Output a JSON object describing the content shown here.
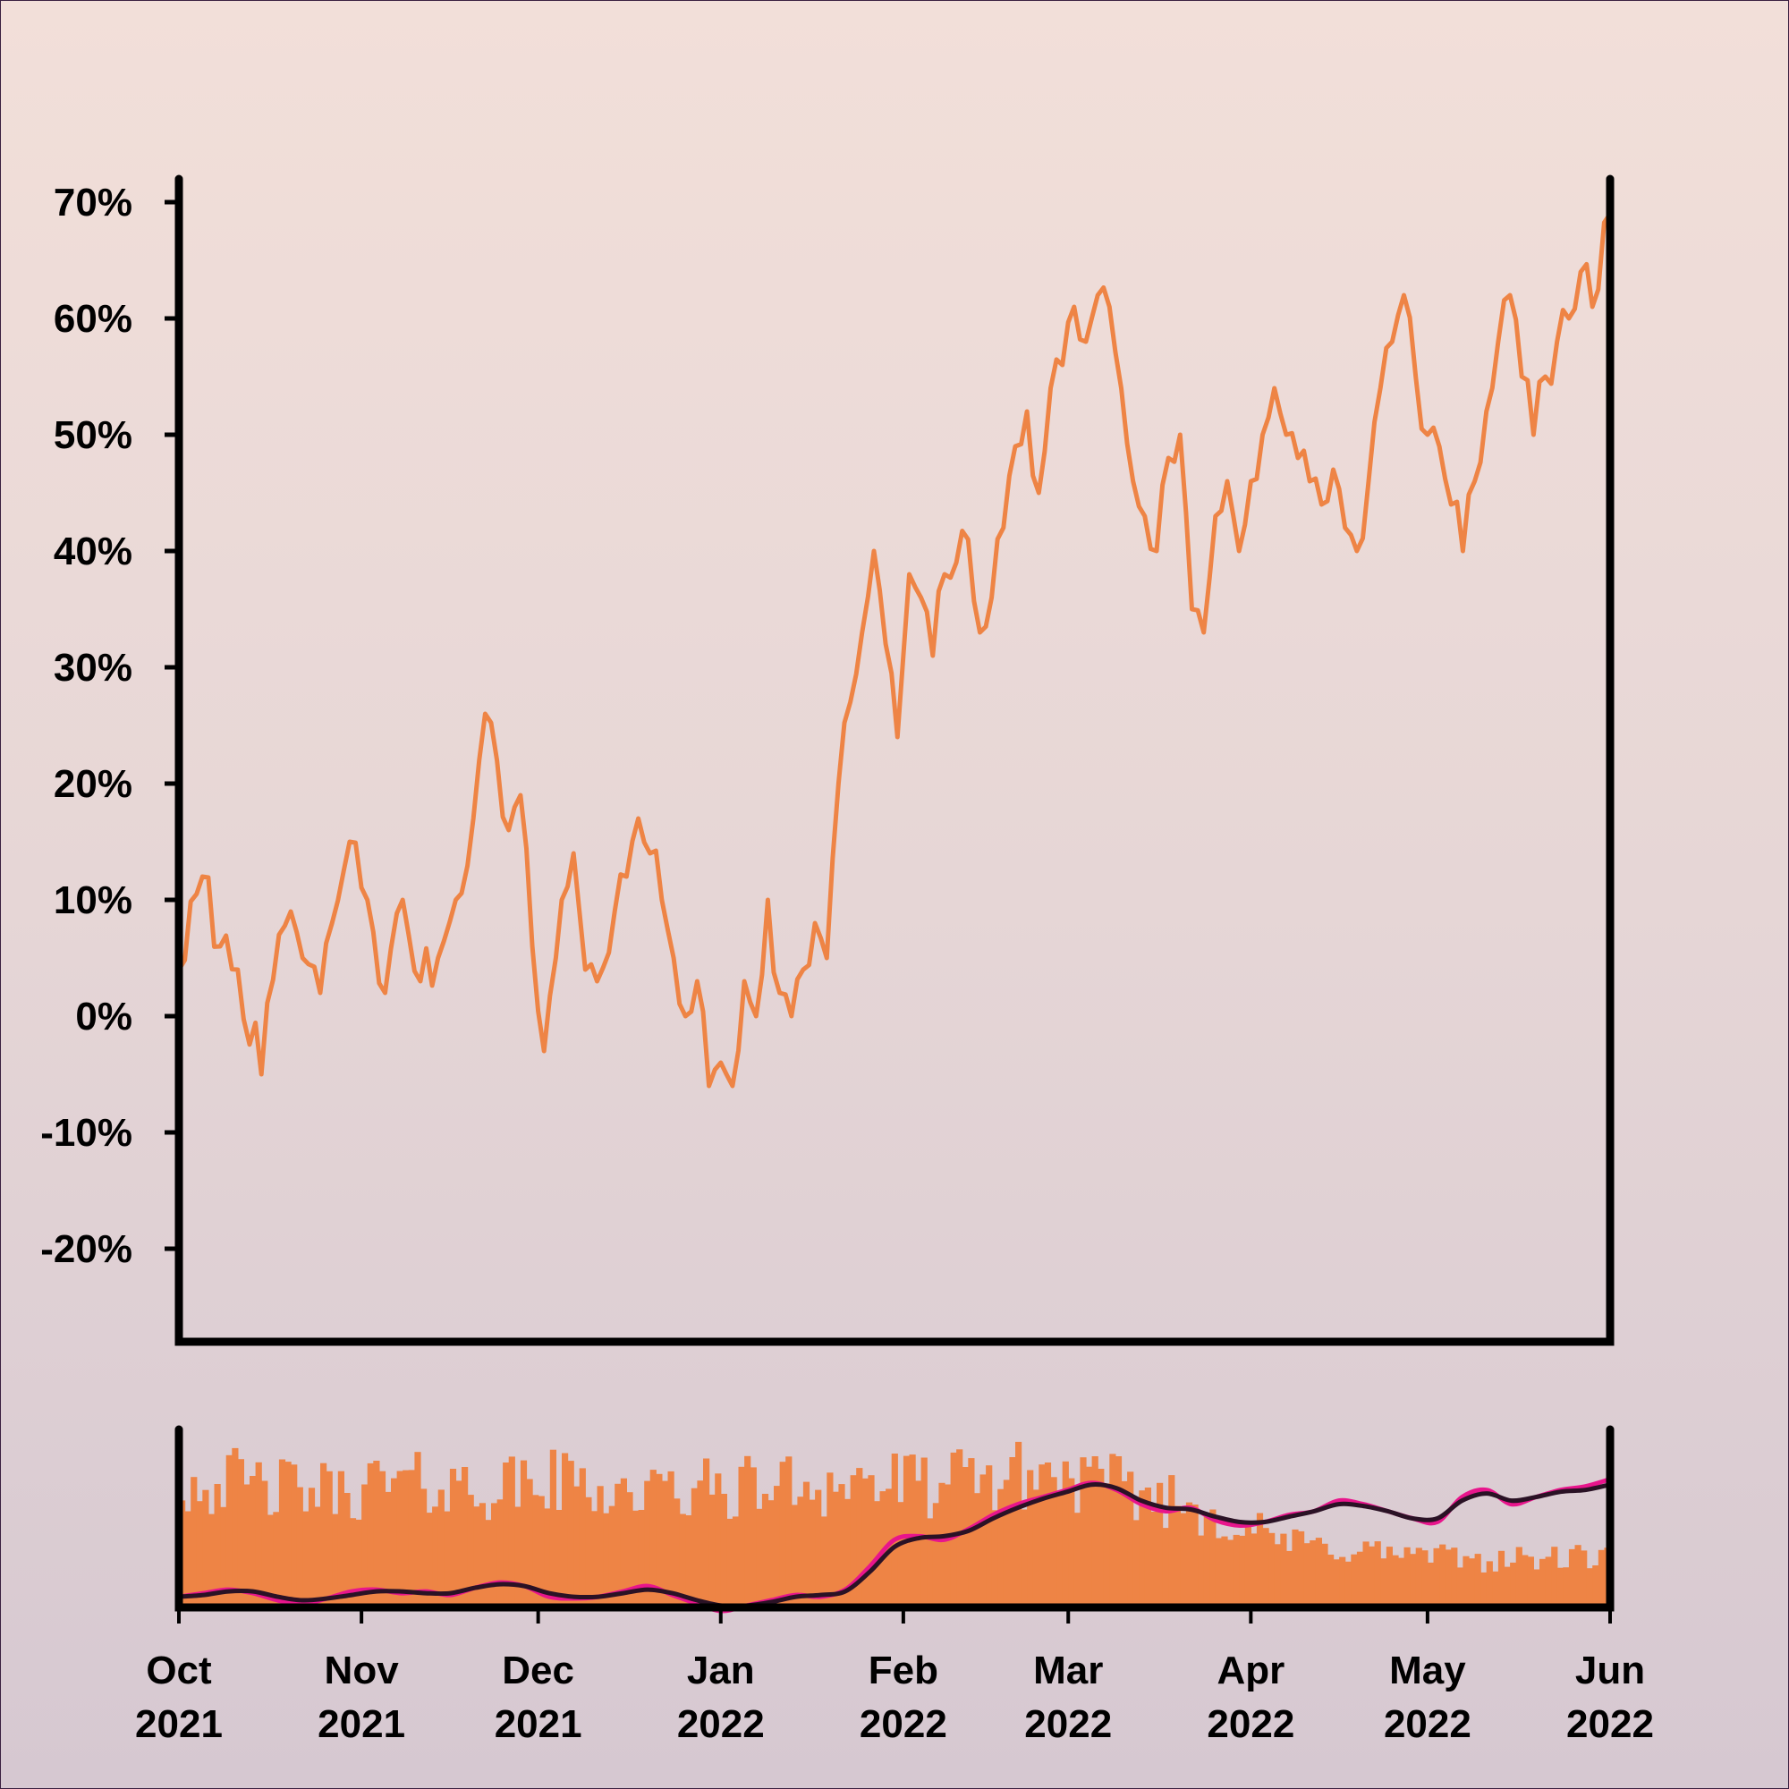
{
  "chart_data": [
    {
      "type": "line",
      "panel": "main",
      "ylim": [
        -0.28,
        0.72
      ],
      "xlim": [
        "2021-10-01",
        "2022-06-01"
      ],
      "yticks": [
        -0.2,
        -0.1,
        0.0,
        0.1,
        0.2,
        0.3,
        0.4,
        0.5,
        0.6,
        0.7
      ],
      "ytick_labels": [
        "-20%",
        "-10%",
        "0%",
        "10%",
        "20%",
        "30%",
        "40%",
        "50%",
        "60%",
        "70%"
      ],
      "grid": false,
      "color": "#ee8445",
      "series": [
        {
          "x": [
            "2021-10-01",
            "2021-10-05",
            "2021-10-08",
            "2021-10-11",
            "2021-10-15",
            "2021-10-18",
            "2021-10-20",
            "2021-10-22",
            "2021-10-25",
            "2021-10-27",
            "2021-10-30",
            "2021-11-02",
            "2021-11-05",
            "2021-11-08",
            "2021-11-11",
            "2021-11-14",
            "2021-11-17",
            "2021-11-20",
            "2021-11-22",
            "2021-11-24",
            "2021-11-26",
            "2021-11-28",
            "2021-11-30",
            "2021-12-02",
            "2021-12-05",
            "2021-12-07",
            "2021-12-09",
            "2021-12-11",
            "2021-12-14",
            "2021-12-16",
            "2021-12-18",
            "2021-12-20",
            "2021-12-22",
            "2021-12-24",
            "2021-12-26",
            "2021-12-28",
            "2021-12-30",
            "2022-01-01",
            "2022-01-03",
            "2022-01-05",
            "2022-01-07",
            "2022-01-09",
            "2022-01-11",
            "2022-01-13",
            "2022-01-15",
            "2022-01-17",
            "2022-01-19",
            "2022-01-21",
            "2022-01-23",
            "2022-01-25",
            "2022-01-27",
            "2022-01-29",
            "2022-01-31",
            "2022-02-02",
            "2022-02-04",
            "2022-02-06",
            "2022-02-08",
            "2022-02-10",
            "2022-02-12",
            "2022-02-14",
            "2022-02-16",
            "2022-02-18",
            "2022-02-20",
            "2022-02-22",
            "2022-02-24",
            "2022-02-26",
            "2022-02-28",
            "2022-03-02",
            "2022-03-04",
            "2022-03-06",
            "2022-03-08",
            "2022-03-10",
            "2022-03-12",
            "2022-03-14",
            "2022-03-16",
            "2022-03-18",
            "2022-03-20",
            "2022-03-22",
            "2022-03-24",
            "2022-03-26",
            "2022-03-28",
            "2022-03-30",
            "2022-04-01",
            "2022-04-03",
            "2022-04-05",
            "2022-04-07",
            "2022-04-09",
            "2022-04-11",
            "2022-04-13",
            "2022-04-15",
            "2022-04-17",
            "2022-04-19",
            "2022-04-21",
            "2022-04-23",
            "2022-04-25",
            "2022-04-27",
            "2022-04-29",
            "2022-05-01",
            "2022-05-03",
            "2022-05-05",
            "2022-05-07",
            "2022-05-09",
            "2022-05-11",
            "2022-05-13",
            "2022-05-15",
            "2022-05-17",
            "2022-05-19",
            "2022-05-21",
            "2022-05-23",
            "2022-05-25",
            "2022-05-27",
            "2022-05-29",
            "2022-06-01"
          ],
          "y": [
            0.04,
            0.12,
            0.06,
            0.04,
            -0.05,
            0.07,
            0.09,
            0.05,
            0.02,
            0.08,
            0.15,
            0.1,
            0.02,
            0.1,
            0.03,
            0.05,
            0.1,
            0.17,
            0.26,
            0.22,
            0.16,
            0.19,
            0.06,
            -0.03,
            0.1,
            0.14,
            0.04,
            0.03,
            0.09,
            0.12,
            0.17,
            0.14,
            0.1,
            0.05,
            0.0,
            0.03,
            -0.06,
            -0.04,
            -0.06,
            0.03,
            0.0,
            0.1,
            0.02,
            0.0,
            0.04,
            0.08,
            0.05,
            0.2,
            0.27,
            0.33,
            0.4,
            0.32,
            0.24,
            0.38,
            0.36,
            0.31,
            0.38,
            0.39,
            0.41,
            0.33,
            0.36,
            0.42,
            0.49,
            0.52,
            0.45,
            0.54,
            0.56,
            0.61,
            0.58,
            0.62,
            0.61,
            0.54,
            0.46,
            0.43,
            0.4,
            0.48,
            0.5,
            0.35,
            0.33,
            0.43,
            0.46,
            0.4,
            0.46,
            0.5,
            0.54,
            0.5,
            0.48,
            0.46,
            0.44,
            0.47,
            0.42,
            0.4,
            0.46,
            0.54,
            0.58,
            0.62,
            0.55,
            0.5,
            0.49,
            0.44,
            0.4,
            0.46,
            0.52,
            0.58,
            0.62,
            0.55,
            0.5,
            0.55,
            0.58,
            0.6,
            0.64,
            0.61,
            0.69
          ]
        }
      ]
    },
    {
      "type": "bar",
      "panel": "volume",
      "xlim": [
        "2021-10-01",
        "2022-06-01"
      ],
      "x_tick_labels": [
        {
          "month": "Oct",
          "year": "2021"
        },
        {
          "month": "Nov",
          "year": "2021"
        },
        {
          "month": "Dec",
          "year": "2021"
        },
        {
          "month": "Jan",
          "year": "2022"
        },
        {
          "month": "Feb",
          "year": "2022"
        },
        {
          "month": "Mar",
          "year": "2022"
        },
        {
          "month": "Apr",
          "year": "2022"
        },
        {
          "month": "May",
          "year": "2022"
        },
        {
          "month": "Jun",
          "year": "2022"
        }
      ],
      "bar_color": "#ee8445",
      "bar_level": [
        0.7,
        0.72,
        0.68,
        0.66,
        0.65,
        0.7,
        0.69,
        0.68,
        0.67,
        0.7,
        0.71,
        0.66,
        0.64,
        0.66,
        0.67,
        0.69,
        0.7,
        0.71,
        0.7,
        0.68,
        0.72,
        0.74,
        0.75,
        0.7,
        0.66,
        0.6,
        0.53,
        0.44,
        0.36,
        0.34,
        0.32,
        0.3,
        0.28,
        0.27,
        0.27,
        0.28,
        0.28
      ],
      "lines": [
        {
          "color": "#e8158c",
          "values": [
            0.06,
            0.08,
            0.1,
            0.08,
            0.04,
            0.02,
            0.05,
            0.09,
            0.1,
            0.08,
            0.09,
            0.07,
            0.11,
            0.14,
            0.12,
            0.06,
            0.05,
            0.06,
            0.09,
            0.12,
            0.07,
            0.02,
            -0.02,
            0.01,
            0.04,
            0.07,
            0.06,
            0.1,
            0.23,
            0.38,
            0.4,
            0.38,
            0.44,
            0.52,
            0.58,
            0.62,
            0.66,
            0.7,
            0.66,
            0.58,
            0.54,
            0.56,
            0.49,
            0.46,
            0.48,
            0.52,
            0.54,
            0.6,
            0.58,
            0.54,
            0.5,
            0.48,
            0.62,
            0.66,
            0.58,
            0.62,
            0.66,
            0.68,
            0.72
          ]
        },
        {
          "color": "#2a1225",
          "values": [
            0.06,
            0.07,
            0.09,
            0.09,
            0.06,
            0.04,
            0.05,
            0.07,
            0.09,
            0.09,
            0.08,
            0.08,
            0.11,
            0.13,
            0.12,
            0.08,
            0.06,
            0.06,
            0.08,
            0.1,
            0.08,
            0.04,
            0.01,
            0.01,
            0.03,
            0.06,
            0.07,
            0.09,
            0.2,
            0.34,
            0.39,
            0.4,
            0.43,
            0.5,
            0.56,
            0.61,
            0.65,
            0.69,
            0.67,
            0.6,
            0.56,
            0.55,
            0.51,
            0.48,
            0.48,
            0.51,
            0.54,
            0.58,
            0.57,
            0.54,
            0.5,
            0.5,
            0.6,
            0.64,
            0.6,
            0.62,
            0.65,
            0.66,
            0.69
          ]
        }
      ]
    }
  ]
}
